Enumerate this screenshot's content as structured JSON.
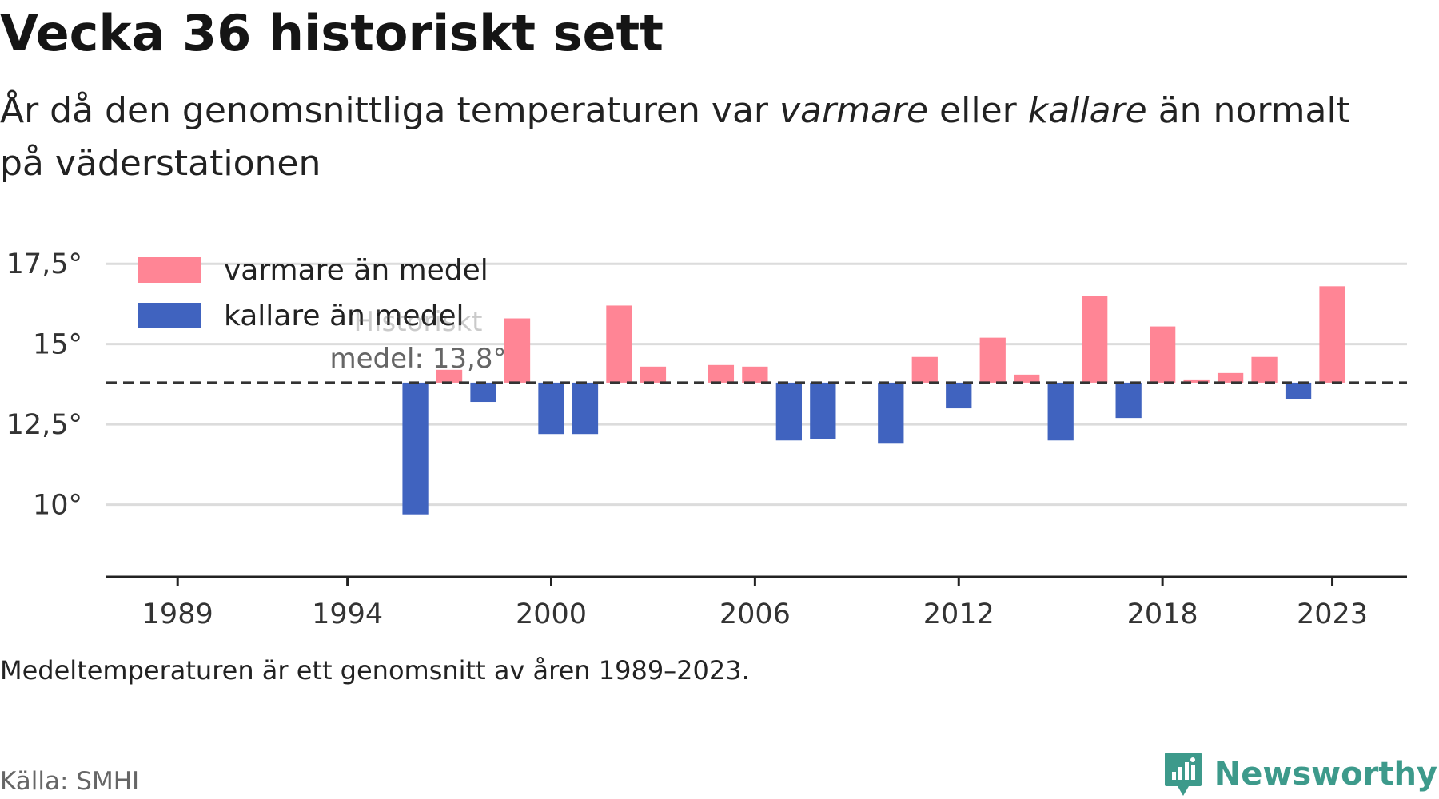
{
  "title": "Vecka 36 historiskt sett",
  "subtitle": {
    "p1": "År då den genomsnittliga temperaturen var ",
    "warm_word": "varmare",
    "p2": " eller ",
    "cold_word": "kallare",
    "p3": " än normalt på väderstationen"
  },
  "note": "Medeltemperaturen är ett genomsnitt av åren 1989–2023.",
  "source": "Källa: SMHI",
  "brand": "Newsworthy",
  "colors": {
    "warm": "#ff8595",
    "cold": "#4063bf",
    "grid": "#dcdcdc",
    "axis": "#222222",
    "mean_line": "#333333",
    "logo": "#3d9a8b"
  },
  "chart_data": {
    "type": "bar",
    "baseline": 13.8,
    "baseline_label_line1": "Historiskt",
    "baseline_label_line2": "medel: 13,8°",
    "x_ticks": [
      "1989",
      "1994",
      "2000",
      "2006",
      "2012",
      "2018",
      "2023"
    ],
    "x_range": [
      1986.9,
      2025.2
    ],
    "y_ticks": [
      {
        "value": 10,
        "label": "10°"
      },
      {
        "value": 12.5,
        "label": "12,5°"
      },
      {
        "value": 15,
        "label": "15°"
      },
      {
        "value": 17.5,
        "label": "17,5°"
      }
    ],
    "ylim": [
      8.2,
      18.5
    ],
    "legend": [
      {
        "key": "warm",
        "label": "varmare än medel"
      },
      {
        "key": "cold",
        "label": "kallare än medel"
      }
    ],
    "legend_position": "top-left",
    "grid": true,
    "years": [
      1996,
      1997,
      1998,
      1999,
      2000,
      2001,
      2002,
      2003,
      2005,
      2006,
      2007,
      2008,
      2010,
      2011,
      2012,
      2013,
      2014,
      2015,
      2016,
      2017,
      2018,
      2019,
      2020,
      2021,
      2022,
      2023
    ],
    "values": [
      9.7,
      14.2,
      13.2,
      15.8,
      12.2,
      12.2,
      16.2,
      14.3,
      14.35,
      14.3,
      12.0,
      12.05,
      11.9,
      14.6,
      13.0,
      15.2,
      14.05,
      12.0,
      16.5,
      12.7,
      15.55,
      13.9,
      14.1,
      14.6,
      13.3,
      16.8
    ]
  }
}
